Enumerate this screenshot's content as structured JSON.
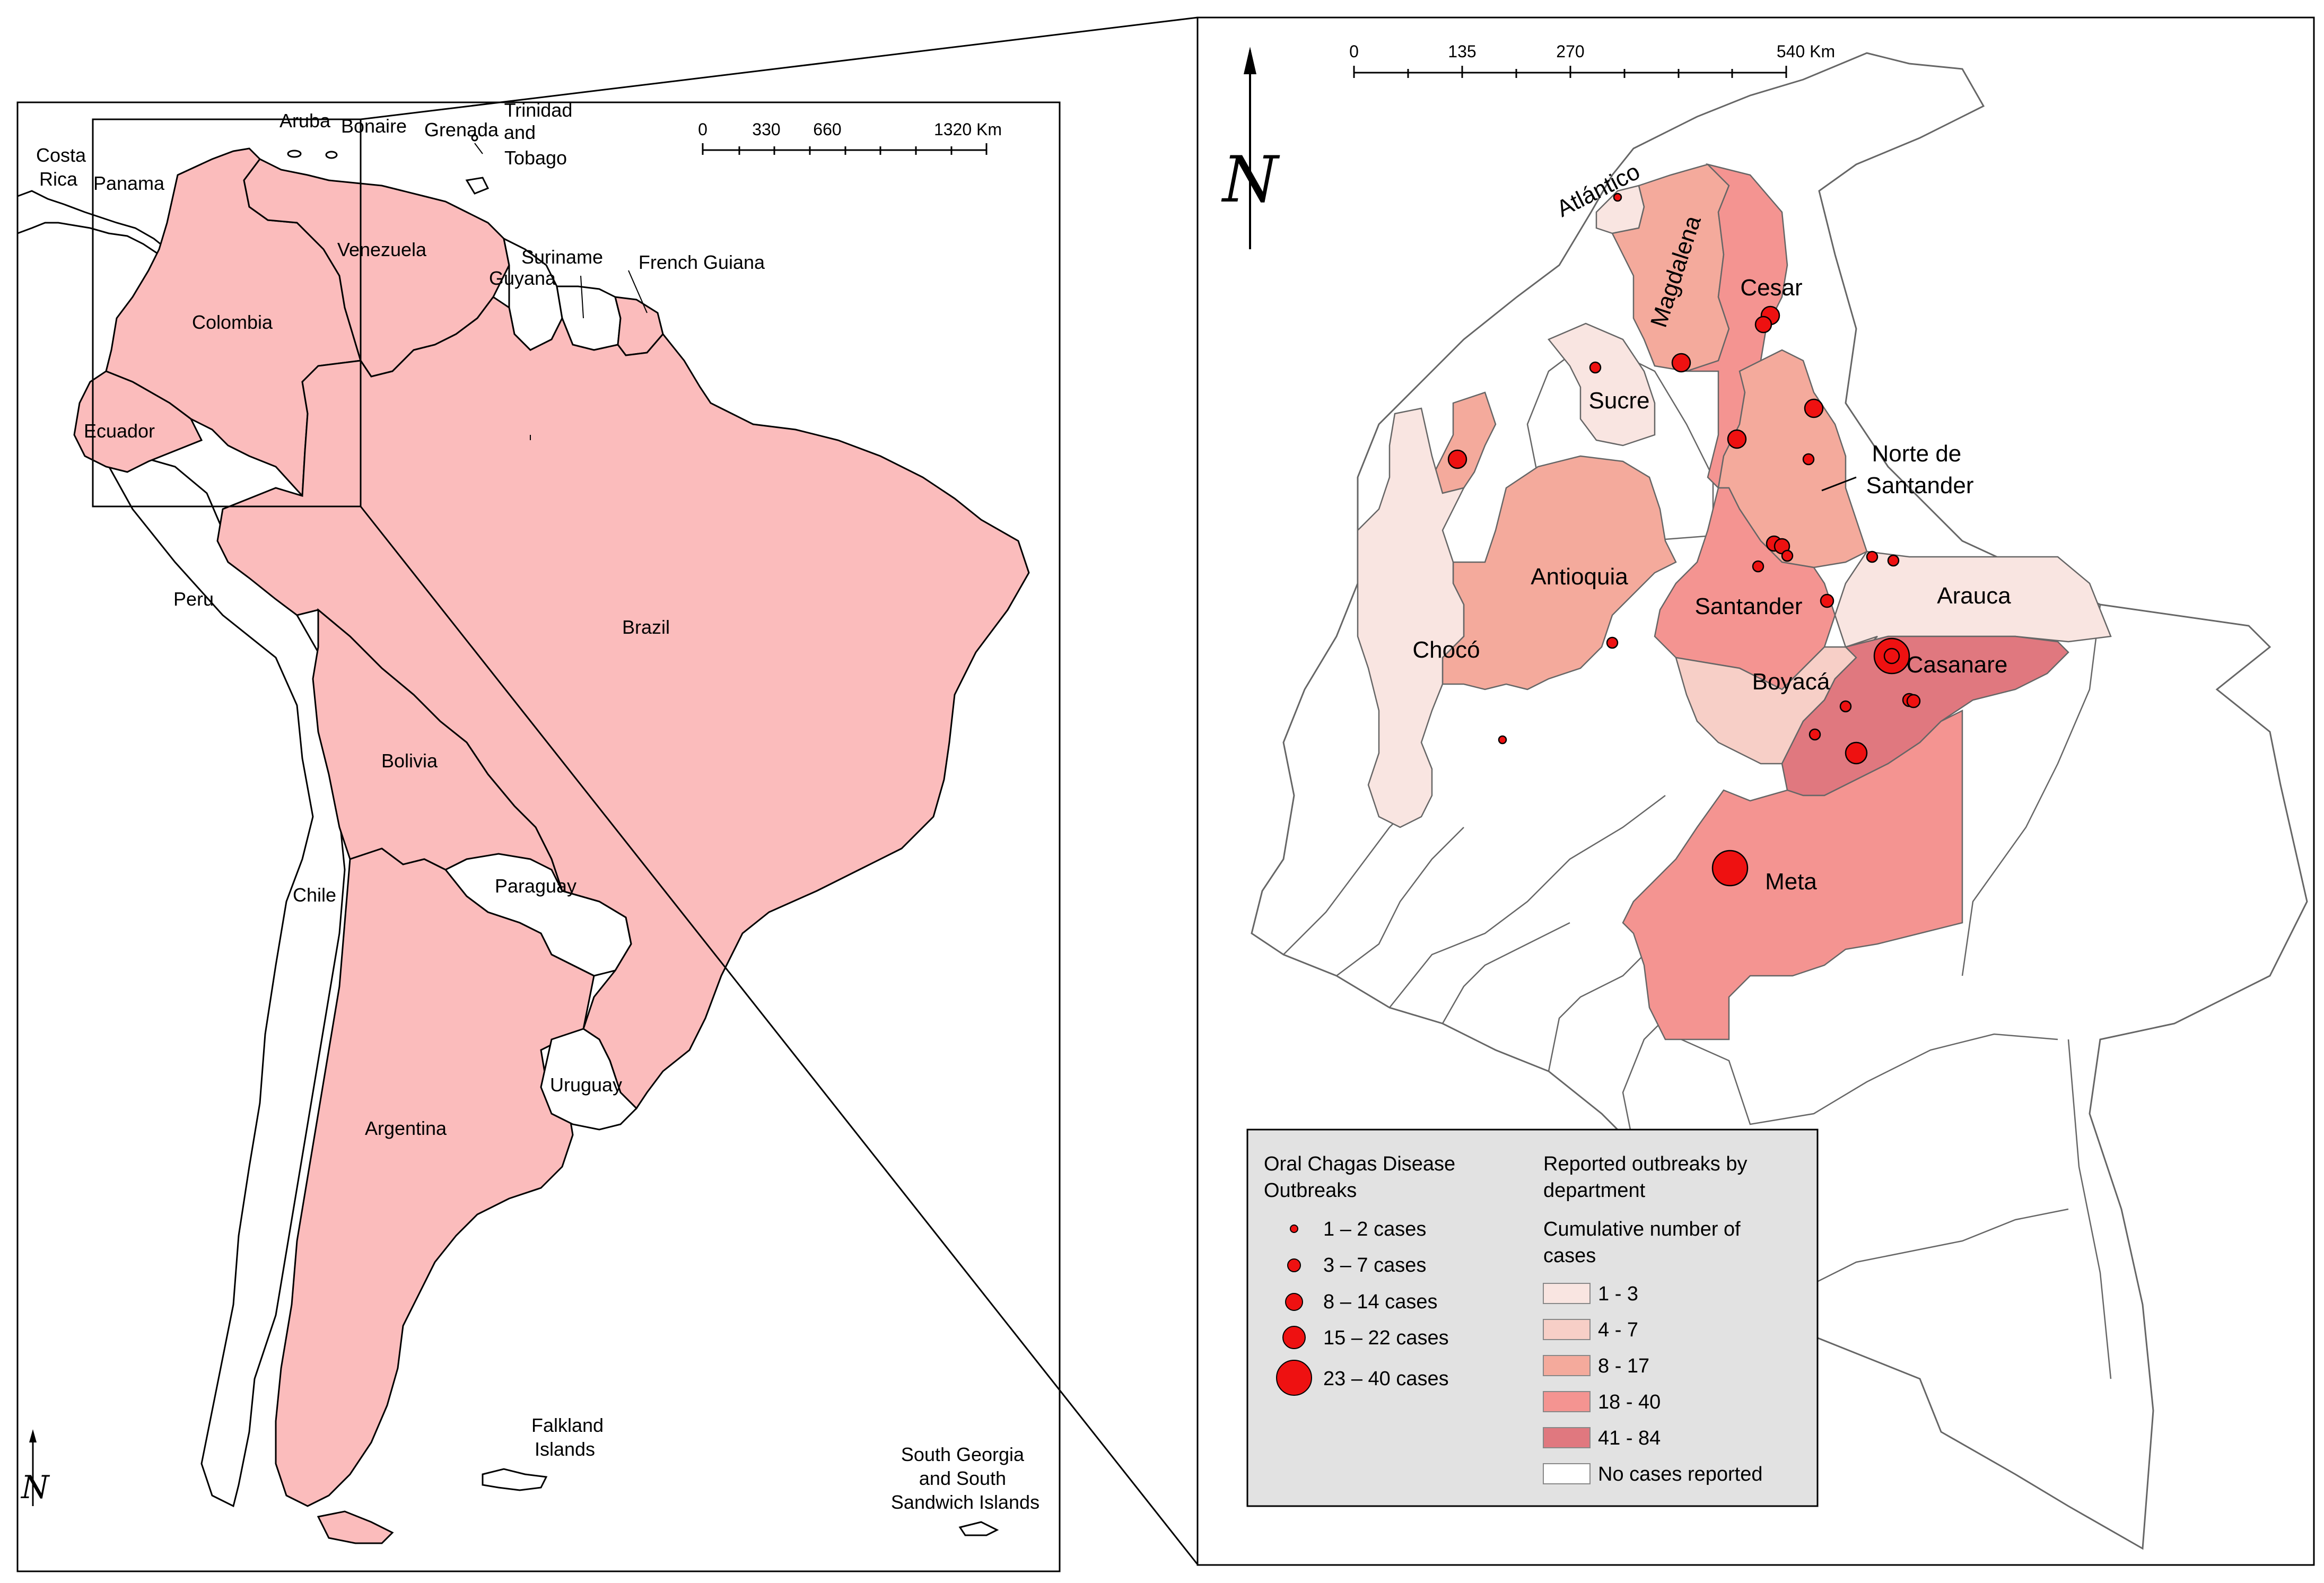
{
  "left_map": {
    "scalebar": {
      "ticks": [
        "0",
        "330",
        "660",
        "1320 Km"
      ]
    },
    "countries": [
      {
        "name": "Costa Rica",
        "lines": [
          "Costa",
          "Rica"
        ],
        "highlighted": false
      },
      {
        "name": "Panama",
        "lines": [
          "Panama"
        ],
        "highlighted": false
      },
      {
        "name": "Aruba",
        "lines": [
          "Aruba"
        ],
        "highlighted": false
      },
      {
        "name": "Bonaire",
        "lines": [
          "Bonaire"
        ],
        "highlighted": false
      },
      {
        "name": "Grenada",
        "lines": [
          "Grenada"
        ],
        "highlighted": false
      },
      {
        "name": "Trinidad and Tobago",
        "lines": [
          "Trinidad",
          "and",
          "Tobago"
        ],
        "highlighted": false
      },
      {
        "name": "Venezuela",
        "lines": [
          "Venezuela"
        ],
        "highlighted": true
      },
      {
        "name": "Colombia",
        "lines": [
          "Colombia"
        ],
        "highlighted": true
      },
      {
        "name": "Suriname",
        "lines": [
          "Suriname"
        ],
        "highlighted": false
      },
      {
        "name": "Guyana",
        "lines": [
          "Guyana"
        ],
        "highlighted": false
      },
      {
        "name": "French Guiana",
        "lines": [
          "French Guiana"
        ],
        "highlighted": true
      },
      {
        "name": "Ecuador",
        "lines": [
          "Ecuador"
        ],
        "highlighted": true
      },
      {
        "name": "Peru",
        "lines": [
          "Peru"
        ],
        "highlighted": false
      },
      {
        "name": "Brazil",
        "lines": [
          "Brazil"
        ],
        "highlighted": true
      },
      {
        "name": "Bolivia",
        "lines": [
          "Bolivia"
        ],
        "highlighted": true
      },
      {
        "name": "Chile",
        "lines": [
          "Chile"
        ],
        "highlighted": false
      },
      {
        "name": "Paraguay",
        "lines": [
          "Paraguay"
        ],
        "highlighted": false
      },
      {
        "name": "Uruguay",
        "lines": [
          "Uruguay"
        ],
        "highlighted": false
      },
      {
        "name": "Argentina",
        "lines": [
          "Argentina"
        ],
        "highlighted": true
      },
      {
        "name": "Falkland Islands",
        "lines": [
          "Falkland",
          "Islands"
        ],
        "highlighted": false
      },
      {
        "name": "South Georgia and South Sandwich Islands",
        "lines": [
          "South Georgia",
          "and South",
          "Sandwich Islands"
        ],
        "highlighted": false
      }
    ]
  },
  "right_map": {
    "scalebar": {
      "ticks": [
        "0",
        "135",
        "270",
        "540 Km"
      ]
    },
    "departments": [
      {
        "name": "Atlántico",
        "lines": [
          "Atlántico"
        ],
        "class": "1 - 3"
      },
      {
        "name": "Magdalena",
        "lines": [
          "Magdalena"
        ],
        "class": "8 - 17"
      },
      {
        "name": "Cesar",
        "lines": [
          "Cesar"
        ],
        "class": "18 - 40"
      },
      {
        "name": "Sucre",
        "lines": [
          "Sucre"
        ],
        "class": "1 - 3"
      },
      {
        "name": "Norte de Santander",
        "lines": [
          "Norte de",
          "Santander"
        ],
        "class": "8 - 17"
      },
      {
        "name": "Antioquia",
        "lines": [
          "Antioquia"
        ],
        "class": "8 - 17"
      },
      {
        "name": "Santander",
        "lines": [
          "Santander"
        ],
        "class": "18 - 40"
      },
      {
        "name": "Arauca",
        "lines": [
          "Arauca"
        ],
        "class": "1 - 3"
      },
      {
        "name": "Chocó",
        "lines": [
          "Chocó"
        ],
        "class": "1 - 3"
      },
      {
        "name": "Casanare",
        "lines": [
          "Casanare"
        ],
        "class": "41 - 84"
      },
      {
        "name": "Boyacá",
        "lines": [
          "Boyacá"
        ],
        "class": "4 - 7"
      },
      {
        "name": "Meta",
        "lines": [
          "Meta"
        ],
        "class": "18 - 40"
      }
    ]
  },
  "legend": {
    "outbreaks_title": [
      "Oral Chagas Disease",
      "Outbreaks"
    ],
    "outbreak_classes": [
      {
        "label": "1 – 2 cases",
        "size_rank": 1
      },
      {
        "label": "3 – 7 cases",
        "size_rank": 2
      },
      {
        "label": "8 – 14 cases",
        "size_rank": 3
      },
      {
        "label": "15 – 22 cases",
        "size_rank": 4
      },
      {
        "label": "23 – 40 cases",
        "size_rank": 5
      }
    ],
    "departments_title": [
      "Reported outbreaks by",
      "department"
    ],
    "cumulative_title": [
      "Cumulative number of",
      "cases"
    ],
    "choropleth_classes": [
      {
        "label": "1 - 3",
        "color": "#f9e5e1"
      },
      {
        "label": "4 - 7",
        "color": "#f7cfc7"
      },
      {
        "label": "8 - 17",
        "color": "#f4aa9c"
      },
      {
        "label": "18 - 40",
        "color": "#f49491"
      },
      {
        "label": "41 - 84",
        "color": "#e0787f"
      },
      {
        "label": "No cases reported",
        "color": "#ffffff"
      }
    ]
  },
  "colors": {
    "highlight_country": "#fbbcbc",
    "legend_bg": "#e2e2e2",
    "outbreak_dot": "#ee1111"
  }
}
